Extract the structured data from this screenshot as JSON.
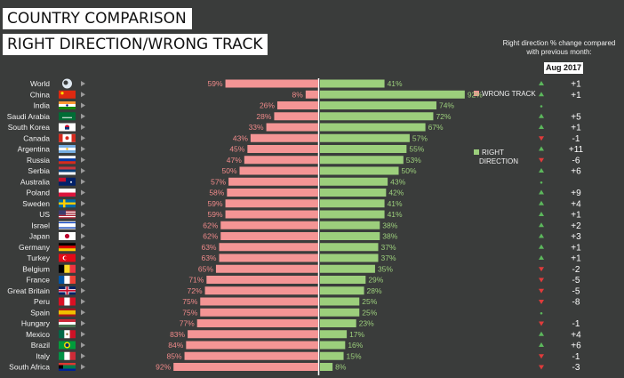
{
  "header": {
    "title_line1": "COUNTRY COMPARISON",
    "title_line2": "RIGHT DIRECTION/WRONG TRACK",
    "change_note": "Right direction % change compared with previous month:",
    "period": "Aug 2017"
  },
  "legend": {
    "wrong_track": "WRONG TRACK",
    "right_direction_line1": "RIGHT",
    "right_direction_line2": "DIRECTION"
  },
  "colors": {
    "background": "#3a3c3b",
    "wrong_track": "#f49595",
    "right_direction": "#9ccf7c",
    "up": "#5cb85c",
    "down": "#e03b3b",
    "flat": "#5cb85c"
  },
  "chart_data": {
    "type": "bar",
    "title": "COUNTRY COMPARISON — RIGHT DIRECTION/WRONG TRACK",
    "xlabel": "",
    "ylabel": "",
    "ylim": [
      0,
      100
    ],
    "categories": [
      "World",
      "China",
      "India",
      "Saudi Arabia",
      "South Korea",
      "Canada",
      "Argentina",
      "Russia",
      "Serbia",
      "Australia",
      "Poland",
      "Sweden",
      "US",
      "Israel",
      "Japan",
      "Germany",
      "Turkey",
      "Belgium",
      "France",
      "Great Britain",
      "Peru",
      "Spain",
      "Hungary",
      "Mexico",
      "Brazil",
      "Italy",
      "South Africa"
    ],
    "series": [
      {
        "name": "WRONG TRACK",
        "values": [
          59,
          8,
          26,
          28,
          33,
          43,
          45,
          47,
          50,
          57,
          58,
          59,
          59,
          62,
          62,
          63,
          63,
          65,
          71,
          72,
          75,
          75,
          77,
          83,
          84,
          85,
          92
        ]
      },
      {
        "name": "RIGHT DIRECTION",
        "values": [
          41,
          92,
          74,
          72,
          67,
          57,
          55,
          53,
          50,
          43,
          42,
          41,
          41,
          38,
          38,
          37,
          37,
          35,
          29,
          28,
          25,
          25,
          23,
          17,
          16,
          15,
          8
        ]
      }
    ],
    "change_vs_previous_month": [
      "+1",
      "+1",
      "",
      "+5",
      "+1",
      "-1",
      "+11",
      "-6",
      "+6",
      "",
      "+9",
      "+4",
      "+1",
      "+2",
      "+3",
      "+1",
      "+1",
      "-2",
      "-5",
      "-5",
      "-8",
      "",
      "-1",
      "+4",
      "+6",
      "-1",
      "-3"
    ],
    "change_direction": [
      "up",
      "up",
      "flat",
      "up",
      "up",
      "down",
      "up",
      "down",
      "up",
      "flat",
      "up",
      "up",
      "up",
      "up",
      "up",
      "up",
      "up",
      "down",
      "down",
      "down",
      "down",
      "flat",
      "down",
      "up",
      "up",
      "down",
      "down"
    ]
  }
}
